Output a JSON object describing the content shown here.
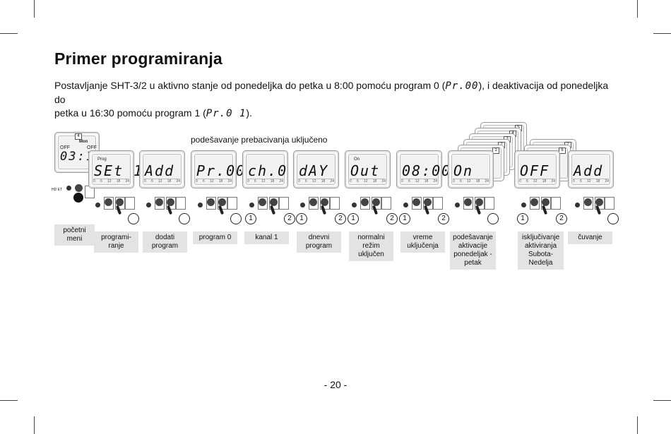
{
  "title": "Primer programiranja",
  "intro": {
    "line1_a": "Postavljanje SHT-3/2 u aktivno stanje od ponedeljka do petka u 8:00 pomoću program 0 (",
    "seg_p0": "Pr.00",
    "line1_b": "), i deaktivacija od ponedeljka do",
    "line2_a": "petka u 16:30 pomoću program 1 (",
    "seg_p1": "Pr.0 1",
    "line2_b": ")."
  },
  "caption": "podešavanje prebacivanja uključeno",
  "initial_display": {
    "off_left": "OFF",
    "off_right": "OFF",
    "time": "03:17",
    "day": "Mon",
    "day_index": "4",
    "model": "HD ET"
  },
  "steps": [
    {
      "display": "SEt 1",
      "tag": "Prog",
      "label": "programi-\nranje"
    },
    {
      "display": "Add",
      "label": "dodati\nprogram"
    },
    {
      "display": "Pr.00",
      "label": "program 0"
    },
    {
      "display": "ch.0 1",
      "label": "kanal 1"
    },
    {
      "display": "dAY",
      "label": "dnevni\nprogram"
    },
    {
      "display": "Out",
      "tag": "On",
      "label": "normalni\nrežim\nuključen"
    },
    {
      "display": "08:00",
      "label": "vreme\nuključenja"
    },
    {
      "display": "On",
      "label": "podešavanje\naktivacije\nponedeljak -\npetak",
      "stack_badges": [
        "5",
        "4",
        "3",
        "2",
        "1"
      ]
    },
    {
      "display": "OFF",
      "label": "isključivanje\naktiviranja\nSubota-\nNedelja",
      "stack_badges": [
        "7",
        "6"
      ]
    },
    {
      "display": "Add",
      "label": "čuvanje"
    }
  ],
  "initial_label": "početni\nmeni",
  "scale_ticks": [
    "0",
    "6",
    "12",
    "18",
    "24"
  ],
  "circle_numbers": [
    "1",
    "2"
  ],
  "page_number": "- 20 -"
}
